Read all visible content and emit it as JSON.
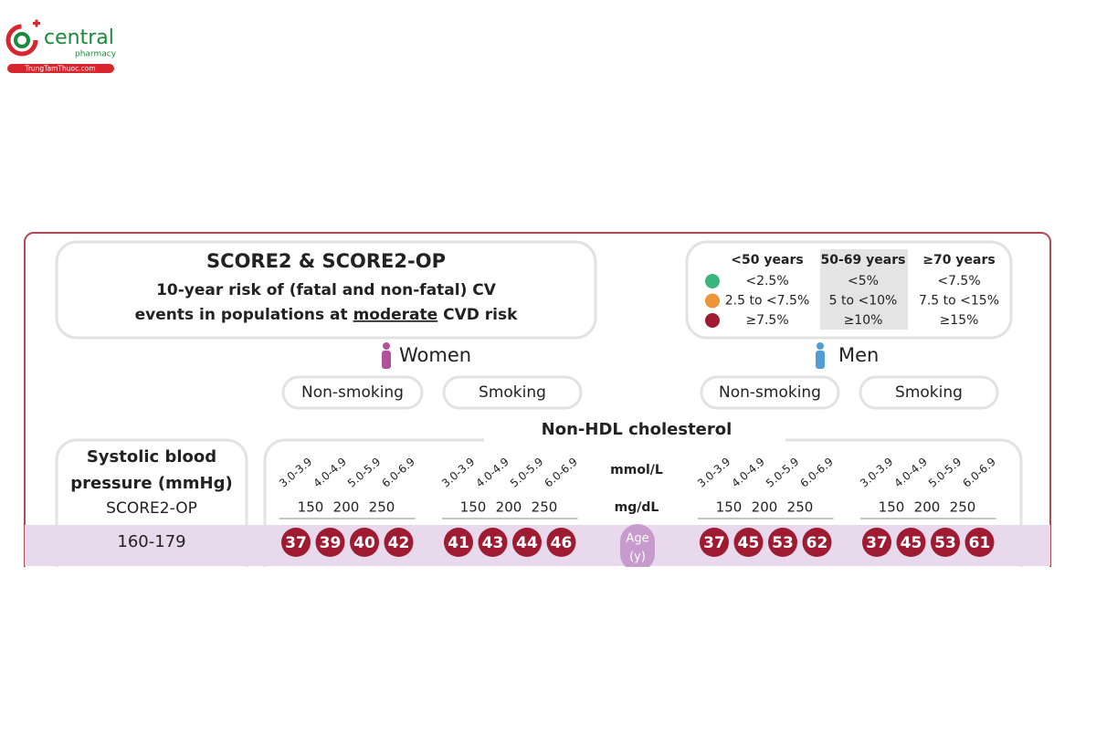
{
  "logo": {
    "name": "central",
    "sub": "pharmacy",
    "url": "TrungTamThuoc.com"
  },
  "header": {
    "title": "SCORE2 & SCORE2-OP",
    "line1": "10-year risk of (fatal and non-fatal) CV",
    "line2": {
      "before": "events in populations at ",
      "emphasis": "moderate",
      "after": " CVD risk"
    }
  },
  "legend": {
    "columns": [
      "<50 years",
      "50-69 years",
      "≥70 years"
    ],
    "rows": [
      {
        "color": "#3bb57e",
        "labels": [
          "<2.5%",
          "<5%",
          "<7.5%"
        ]
      },
      {
        "color": "#f0943a",
        "labels": [
          "2.5 to <7.5%",
          "5 to <10%",
          "7.5 to <15%"
        ]
      },
      {
        "color": "#9e1b32",
        "labels": [
          "≥7.5%",
          "≥10%",
          "≥15%"
        ]
      }
    ]
  },
  "sexes": [
    {
      "label": "Women",
      "color": "#b0529a",
      "groups": [
        "Non-smoking",
        "Smoking"
      ]
    },
    {
      "label": "Men",
      "color": "#4f9fd6",
      "groups": [
        "Non-smoking",
        "Smoking"
      ]
    }
  ],
  "axis": {
    "title": "Non-HDL cholesterol",
    "mmol_label": "mmol/L",
    "mgdl_label": "mg/dL",
    "mmol_bins": [
      "3.0-3.9",
      "4.0-4.9",
      "5.0-5.9",
      "6.0-6.9"
    ],
    "mgdl_ticks": [
      150,
      200,
      250
    ]
  },
  "row_header": {
    "line1": "Systolic blood",
    "line2": "pressure (mmHg)",
    "line3": "SCORE2-OP"
  },
  "age_label": {
    "line1": "Age",
    "line2": "(y)"
  },
  "cell_color": "#9e1b32",
  "rows": [
    {
      "label": "160-179",
      "values": [
        [
          37,
          39,
          40,
          42
        ],
        [
          41,
          43,
          44,
          46
        ],
        [
          37,
          45,
          53,
          62
        ],
        [
          37,
          45,
          53,
          61
        ]
      ]
    }
  ]
}
